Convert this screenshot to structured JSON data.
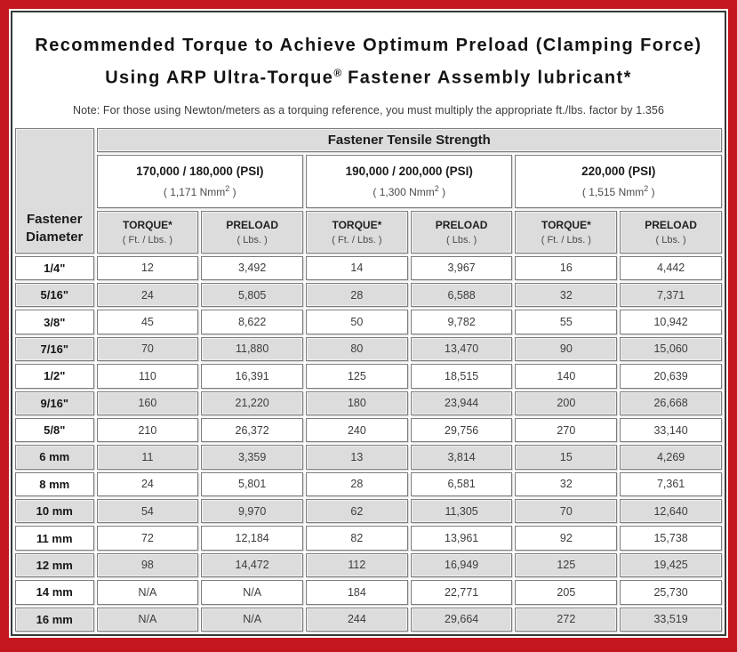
{
  "header": {
    "title_line1": "Recommended Torque to Achieve Optimum Preload (Clamping Force)",
    "title_line2_prefix": "Using ARP Ultra-Torque",
    "title_line2_reg": "®",
    "title_line2_suffix": " Fastener Assembly lubricant*",
    "note": "Note: For those using Newton/meters as a torquing reference, you must multiply the appropriate ft./lbs. factor by 1.356"
  },
  "table": {
    "tensile_header": "Fastener Tensile Strength",
    "corner_label_line1": "Fastener",
    "corner_label_line2": "Diameter",
    "strength_groups": [
      {
        "psi": "170,000 / 180,000 (PSI)",
        "nmm_pre": "( 1,171 Nmm",
        "nmm_sup": "2",
        "nmm_post": " )"
      },
      {
        "psi": "190,000 / 200,000 (PSI)",
        "nmm_pre": "( 1,300 Nmm",
        "nmm_sup": "2",
        "nmm_post": " )"
      },
      {
        "psi": "220,000 (PSI)",
        "nmm_pre": "( 1,515 Nmm",
        "nmm_sup": "2",
        "nmm_post": " )"
      }
    ],
    "sub_headers": {
      "torque_label": "TORQUE*",
      "torque_unit": "( Ft. / Lbs. )",
      "preload_label": "PRELOAD",
      "preload_unit": "( Lbs. )"
    },
    "rows": [
      {
        "diameter": "1/4\"",
        "values": [
          "12",
          "3,492",
          "14",
          "3,967",
          "16",
          "4,442"
        ]
      },
      {
        "diameter": "5/16\"",
        "values": [
          "24",
          "5,805",
          "28",
          "6,588",
          "32",
          "7,371"
        ]
      },
      {
        "diameter": "3/8\"",
        "values": [
          "45",
          "8,622",
          "50",
          "9,782",
          "55",
          "10,942"
        ]
      },
      {
        "diameter": "7/16\"",
        "values": [
          "70",
          "11,880",
          "80",
          "13,470",
          "90",
          "15,060"
        ]
      },
      {
        "diameter": "1/2\"",
        "values": [
          "110",
          "16,391",
          "125",
          "18,515",
          "140",
          "20,639"
        ]
      },
      {
        "diameter": "9/16\"",
        "values": [
          "160",
          "21,220",
          "180",
          "23,944",
          "200",
          "26,668"
        ]
      },
      {
        "diameter": "5/8\"",
        "values": [
          "210",
          "26,372",
          "240",
          "29,756",
          "270",
          "33,140"
        ]
      },
      {
        "diameter": "6 mm",
        "values": [
          "11",
          "3,359",
          "13",
          "3,814",
          "15",
          "4,269"
        ]
      },
      {
        "diameter": "8 mm",
        "values": [
          "24",
          "5,801",
          "28",
          "6,581",
          "32",
          "7,361"
        ]
      },
      {
        "diameter": "10 mm",
        "values": [
          "54",
          "9,970",
          "62",
          "11,305",
          "70",
          "12,640"
        ]
      },
      {
        "diameter": "11 mm",
        "values": [
          "72",
          "12,184",
          "82",
          "13,961",
          "92",
          "15,738"
        ]
      },
      {
        "diameter": "12 mm",
        "values": [
          "98",
          "14,472",
          "112",
          "16,949",
          "125",
          "19,425"
        ]
      },
      {
        "diameter": "14 mm",
        "values": [
          "N/A",
          "N/A",
          "184",
          "22,771",
          "205",
          "25,730"
        ]
      },
      {
        "diameter": "16 mm",
        "values": [
          "N/A",
          "N/A",
          "244",
          "29,664",
          "272",
          "33,519"
        ]
      }
    ]
  },
  "colors": {
    "frame_red": "#c4161e",
    "page_border_dark": "#383838",
    "cell_border_gray": "#7d7d7d",
    "row_stripe_gray": "#dcdcdc",
    "text_dark": "#1a1a1a"
  }
}
